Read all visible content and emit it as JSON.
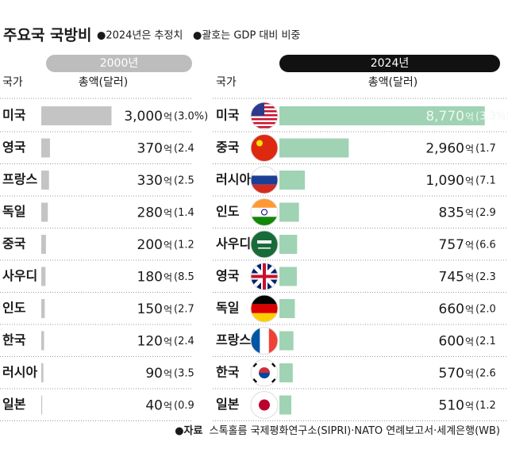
{
  "header": {
    "title": "주요국 국방비",
    "notes": [
      "●2024년은 추정치",
      "●괄호는 GDP 대비 비중"
    ]
  },
  "chart_data": [
    {
      "type": "bar",
      "title": "2000년",
      "title_bg": "#bdbdbd",
      "country_header": "국가",
      "value_header": "총액(달러)",
      "categories": [
        "미국",
        "영국",
        "프랑스",
        "독일",
        "중국",
        "사우디",
        "인도",
        "한국",
        "러시아",
        "일본"
      ],
      "values": [
        3000,
        370,
        330,
        280,
        200,
        180,
        150,
        120,
        90,
        40
      ],
      "value_labels": [
        "3,000",
        "370",
        "330",
        "280",
        "200",
        "180",
        "150",
        "120",
        "90",
        "40"
      ],
      "unit": "억",
      "gdp_labels": [
        "(3.0%)",
        "(2.4",
        "(2.5",
        "(1.4",
        "(1.2",
        "(8.5",
        "(2.7",
        "(2.4",
        "(3.5",
        "(0.9"
      ],
      "color": "#c4c4c4"
    },
    {
      "type": "bar",
      "title": "2024년",
      "title_bg": "#111111",
      "country_header": "국가",
      "value_header": "총액(달러)",
      "categories": [
        "미국",
        "중국",
        "러시아",
        "인도",
        "사우디",
        "영국",
        "독일",
        "프랑스",
        "한국",
        "일본"
      ],
      "values": [
        8770,
        2960,
        1090,
        835,
        757,
        745,
        660,
        600,
        570,
        510
      ],
      "value_labels": [
        "8,770",
        "2,960",
        "1,090",
        "835",
        "757",
        "745",
        "660",
        "600",
        "570",
        "510"
      ],
      "unit": "억",
      "gdp_labels": [
        "(3.3%)",
        "(1.7",
        "(7.1",
        "(2.9",
        "(6.6",
        "(2.3",
        "(2.0",
        "(2.1",
        "(2.6",
        "(1.2"
      ],
      "color": "#9fd3b3"
    }
  ],
  "footer": {
    "label": "●자료",
    "source": "스톡홀름 국제평화연구소(SIPRI)·NATO 연례보고서·세계은행(WB)"
  }
}
